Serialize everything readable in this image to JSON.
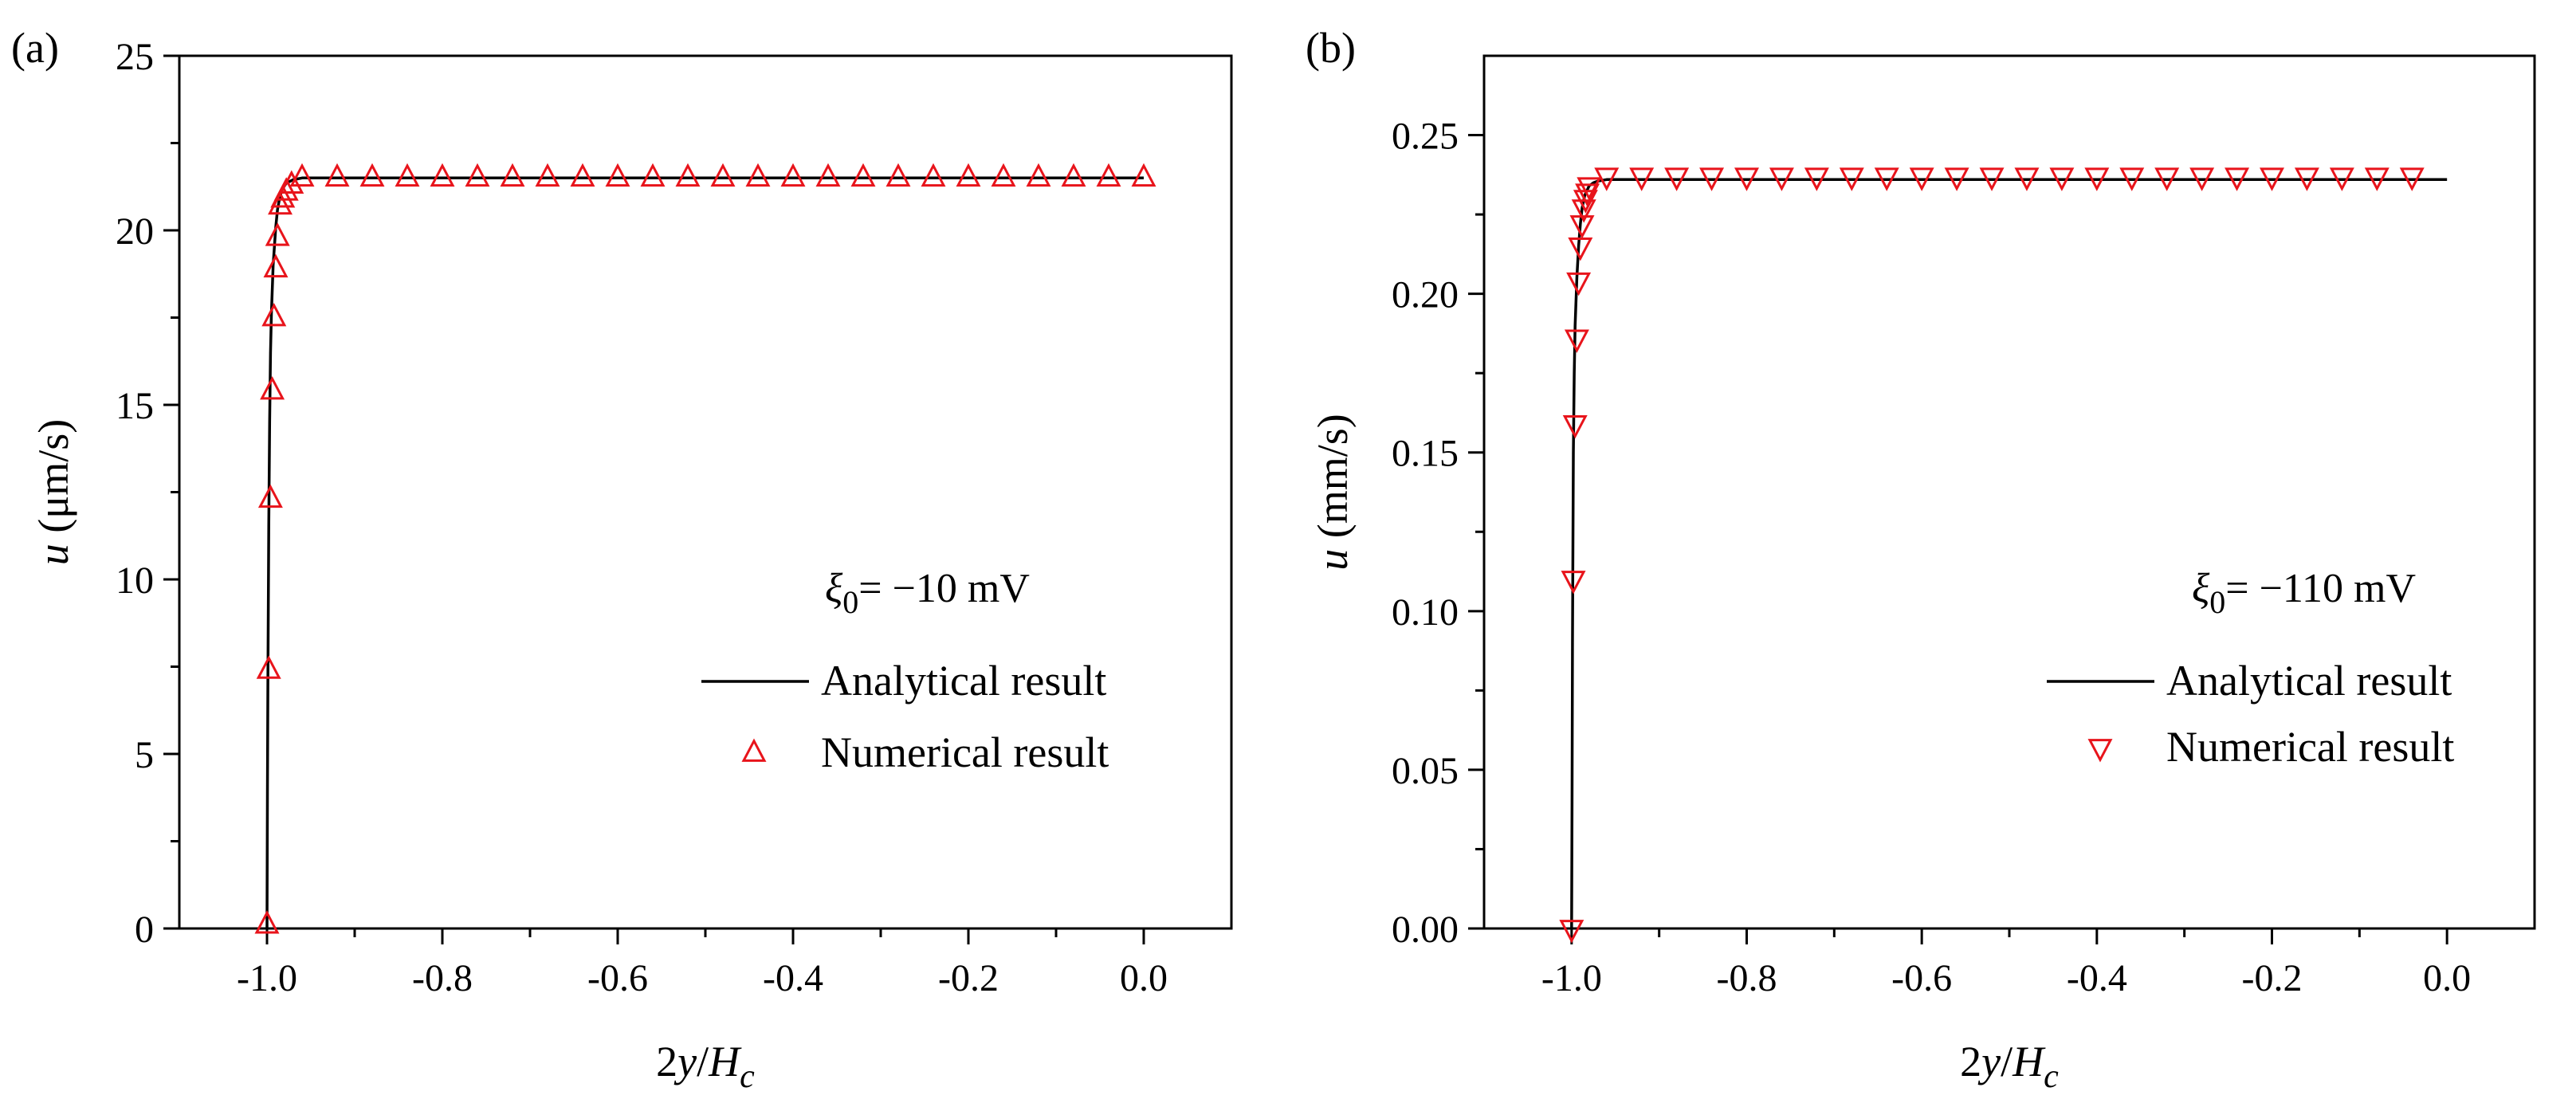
{
  "chart_data": [
    {
      "type": "line",
      "panel_label": "(a)",
      "xlabel": {
        "main": "2y/H",
        "sub": "c"
      },
      "ylabel": {
        "var": "u",
        "unit": " (μm/s)"
      },
      "xlim": [
        -1.1,
        0.1
      ],
      "ylim": [
        0,
        25
      ],
      "x_ticks": [
        -1.0,
        -0.8,
        -0.6,
        -0.4,
        -0.2,
        0.0
      ],
      "x_tick_labels": [
        "-1.0",
        "-0.8",
        "-0.6",
        "-0.4",
        "-0.2",
        "0.0"
      ],
      "y_ticks": [
        0,
        5,
        10,
        15,
        20,
        25
      ],
      "y_tick_labels": [
        "0",
        "5",
        "10",
        "15",
        "20",
        "25"
      ],
      "annotation": {
        "symbol": "ξ",
        "sub": "0",
        "text": "= −10 mV"
      },
      "legend": {
        "position": "center-right",
        "entries": [
          "Analytical result",
          "Numerical result"
        ]
      },
      "series": [
        {
          "name": "Analytical result",
          "style": "line",
          "color": "#000000",
          "x": [
            -1.0,
            -0.9995,
            -0.999,
            -0.998,
            -0.997,
            -0.996,
            -0.995,
            -0.993,
            -0.99,
            -0.988,
            -0.985,
            -0.982,
            -0.978,
            -0.97,
            -0.96,
            -0.9,
            -0.5,
            0.0
          ],
          "y": [
            0,
            4.0,
            7.0,
            11.5,
            14.5,
            16.5,
            17.6,
            19.0,
            20.1,
            20.6,
            21.0,
            21.2,
            21.35,
            21.45,
            21.5,
            21.5,
            21.5,
            21.5
          ]
        },
        {
          "name": "Numerical result",
          "style": "marker-triangle-up",
          "color": "#e8141b",
          "x": [
            -1.0,
            -0.998,
            -0.996,
            -0.994,
            -0.992,
            -0.99,
            -0.988,
            -0.985,
            -0.982,
            -0.978,
            -0.972,
            -0.96,
            -0.92,
            -0.88,
            -0.84,
            -0.8,
            -0.76,
            -0.72,
            -0.68,
            -0.64,
            -0.6,
            -0.56,
            -0.52,
            -0.48,
            -0.44,
            -0.4,
            -0.36,
            -0.32,
            -0.28,
            -0.24,
            -0.2,
            -0.16,
            -0.12,
            -0.08,
            -0.04,
            0.0
          ],
          "y": [
            0.1,
            7.4,
            12.3,
            15.4,
            17.5,
            18.9,
            19.8,
            20.7,
            20.9,
            21.1,
            21.3,
            21.5,
            21.5,
            21.5,
            21.5,
            21.5,
            21.5,
            21.5,
            21.5,
            21.5,
            21.5,
            21.5,
            21.5,
            21.5,
            21.5,
            21.5,
            21.5,
            21.5,
            21.5,
            21.5,
            21.5,
            21.5,
            21.5,
            21.5,
            21.5,
            21.5
          ]
        }
      ]
    },
    {
      "type": "line",
      "panel_label": "(b)",
      "xlabel": {
        "main": "2y/H",
        "sub": "c"
      },
      "ylabel": {
        "var": "u",
        "unit": " (mm/s)"
      },
      "xlim": [
        -1.1,
        0.1
      ],
      "ylim": [
        0,
        0.275
      ],
      "x_ticks": [
        -1.0,
        -0.8,
        -0.6,
        -0.4,
        -0.2,
        0.0
      ],
      "x_tick_labels": [
        "-1.0",
        "-0.8",
        "-0.6",
        "-0.4",
        "-0.2",
        "0.0"
      ],
      "y_ticks": [
        0,
        0.05,
        0.1,
        0.15,
        0.2,
        0.25
      ],
      "y_tick_labels": [
        "0.00",
        "0.05",
        "0.10",
        "0.15",
        "0.20",
        "0.25"
      ],
      "annotation": {
        "symbol": "ξ",
        "sub": "0",
        "text": "= −110 mV"
      },
      "legend": {
        "position": "center-right",
        "entries": [
          "Analytical result",
          "Numerical result"
        ]
      },
      "series": [
        {
          "name": "Analytical result",
          "style": "line",
          "color": "#000000",
          "x": [
            -1.0,
            -0.9995,
            -0.999,
            -0.9985,
            -0.998,
            -0.997,
            -0.996,
            -0.994,
            -0.992,
            -0.99,
            -0.988,
            -0.985,
            -0.98,
            -0.975,
            -0.97,
            -0.96,
            -0.9,
            -0.5,
            0.0
          ],
          "y": [
            0,
            0.04,
            0.09,
            0.12,
            0.15,
            0.175,
            0.19,
            0.205,
            0.215,
            0.222,
            0.227,
            0.231,
            0.234,
            0.235,
            0.2355,
            0.236,
            0.236,
            0.236,
            0.236
          ]
        },
        {
          "name": "Numerical result",
          "style": "marker-triangle-down",
          "color": "#e8141b",
          "x": [
            -1.0,
            -0.998,
            -0.996,
            -0.994,
            -0.992,
            -0.99,
            -0.988,
            -0.986,
            -0.984,
            -0.982,
            -0.98,
            -0.96,
            -0.92,
            -0.88,
            -0.84,
            -0.8,
            -0.76,
            -0.72,
            -0.68,
            -0.64,
            -0.6,
            -0.56,
            -0.52,
            -0.48,
            -0.44,
            -0.4,
            -0.36,
            -0.32,
            -0.28,
            -0.24,
            -0.2,
            -0.16,
            -0.12,
            -0.08,
            -0.04
          ],
          "y": [
            0.0,
            0.11,
            0.159,
            0.186,
            0.204,
            0.215,
            0.222,
            0.227,
            0.23,
            0.232,
            0.234,
            0.237,
            0.237,
            0.237,
            0.237,
            0.237,
            0.237,
            0.237,
            0.237,
            0.237,
            0.237,
            0.237,
            0.237,
            0.237,
            0.237,
            0.237,
            0.237,
            0.237,
            0.237,
            0.237,
            0.237,
            0.237,
            0.237,
            0.237,
            0.237
          ]
        }
      ]
    }
  ]
}
